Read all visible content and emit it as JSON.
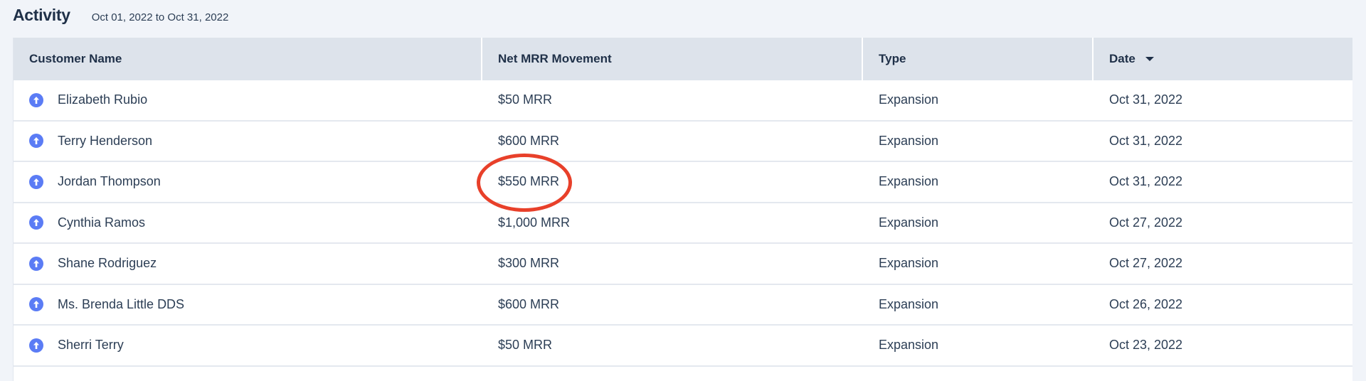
{
  "header": {
    "title": "Activity",
    "date_range": "Oct 01, 2022 to Oct 31, 2022"
  },
  "table": {
    "columns": [
      "Customer Name",
      "Net MRR Movement",
      "Type",
      "Date"
    ],
    "sort": {
      "column": "Date",
      "direction": "descending"
    },
    "rows": [
      {
        "name": "Elizabeth Rubio",
        "mrr": "$50 MRR",
        "type": "Expansion",
        "date": "Oct 31, 2022",
        "icon": "arrow-up-circle-icon"
      },
      {
        "name": "Terry Henderson",
        "mrr": "$600 MRR",
        "type": "Expansion",
        "date": "Oct 31, 2022",
        "icon": "arrow-up-circle-icon"
      },
      {
        "name": "Jordan Thompson",
        "mrr": "$550 MRR",
        "type": "Expansion",
        "date": "Oct 31, 2022",
        "icon": "arrow-up-circle-icon",
        "highlighted": true
      },
      {
        "name": "Cynthia Ramos",
        "mrr": "$1,000 MRR",
        "type": "Expansion",
        "date": "Oct 27, 2022",
        "icon": "arrow-up-circle-icon"
      },
      {
        "name": "Shane Rodriguez",
        "mrr": "$300 MRR",
        "type": "Expansion",
        "date": "Oct 27, 2022",
        "icon": "arrow-up-circle-icon"
      },
      {
        "name": "Ms. Brenda Little DDS",
        "mrr": "$600 MRR",
        "type": "Expansion",
        "date": "Oct 26, 2022",
        "icon": "arrow-up-circle-icon"
      },
      {
        "name": "Sherri Terry",
        "mrr": "$50 MRR",
        "type": "Expansion",
        "date": "Oct 23, 2022",
        "icon": "arrow-up-circle-icon"
      }
    ]
  },
  "colors": {
    "icon": "#5b7cf5",
    "annotation": "#e8402a",
    "header_bg": "#dde3eb",
    "page_bg": "#f1f4f9"
  }
}
